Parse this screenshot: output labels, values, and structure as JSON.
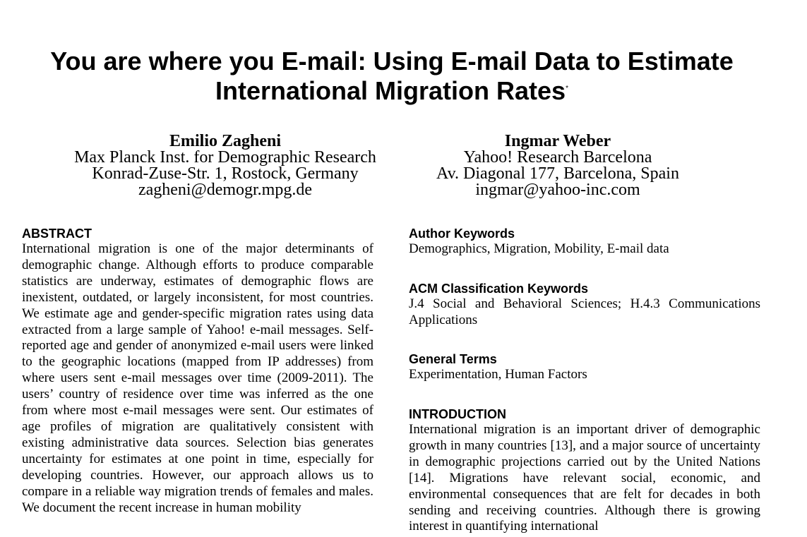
{
  "paper": {
    "title_line1": "You are where you E-mail: Using E-mail Data to Estimate",
    "title_line2": "International Migration Rates",
    "title_mark": "*",
    "authors": [
      {
        "name": "Emilio Zagheni",
        "affiliation": "Max Planck Inst. for Demographic Research",
        "address": "Konrad-Zuse-Str. 1, Rostock, Germany",
        "email": "zagheni@demogr.mpg.de"
      },
      {
        "name": "Ingmar Weber",
        "affiliation": "Yahoo! Research Barcelona",
        "address": "Av. Diagonal 177, Barcelona, Spain",
        "email": "ingmar@yahoo-inc.com"
      }
    ],
    "abstract": {
      "heading": "ABSTRACT",
      "text": "International migration is one of the major determinants of demographic change. Although efforts to produce comparable statistics are underway, estimates of demographic flows are inexistent, outdated, or largely inconsistent, for most countries. We estimate age and gender-specific migration rates using data extracted from a large sample of Yahoo! e-mail messages. Self-reported age and gender of anonymized e-mail users were linked to the geographic locations (mapped from IP addresses) from where users sent e-mail messages over time (2009-2011). The users’ country of residence over time was inferred as the one from where most e-mail messages were sent. Our estimates of age profiles of migration are qualitatively consistent with existing administrative data sources. Selection bias generates uncertainty for estimates at one point in time, especially for developing countries. However, our approach allows us to compare in a reliable way migration trends of females and males. We document the recent increase in human mobility"
    },
    "author_keywords": {
      "heading": "Author Keywords",
      "text": "Demographics, Migration, Mobility, E-mail data"
    },
    "acm_keywords": {
      "heading": "ACM Classification Keywords",
      "text": "J.4 Social and Behavioral Sciences; H.4.3 Communications Applications"
    },
    "general_terms": {
      "heading": "General Terms",
      "text": "Experimentation, Human Factors"
    },
    "introduction": {
      "heading": "INTRODUCTION",
      "text": "International migration is an important driver of demographic growth in many countries [13], and a major source of uncertainty in demographic projections carried out by the United Nations [14]. Migrations have relevant social, economic, and environmental consequences that are felt for decades in both sending and receiving countries. Although there is growing interest in quantifying international"
    }
  }
}
